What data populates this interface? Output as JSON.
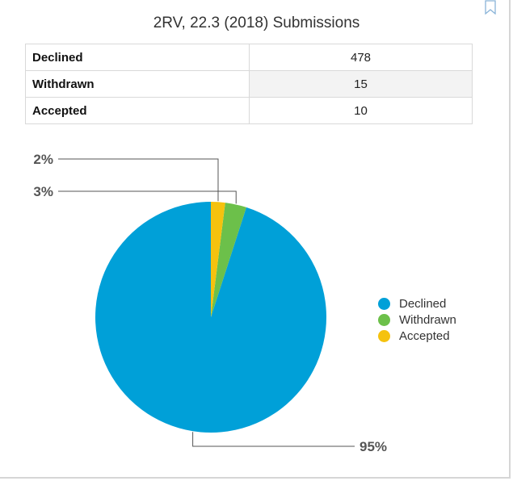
{
  "title": "2RV, 22.3 (2018) Submissions",
  "table": {
    "rows": [
      {
        "label": "Declined",
        "value": "478"
      },
      {
        "label": "Withdrawn",
        "value": "15"
      },
      {
        "label": "Accepted",
        "value": "10"
      }
    ]
  },
  "chart_data": {
    "type": "pie",
    "title": "2RV, 22.3 (2018) Submissions",
    "categories": [
      "Declined",
      "Withdrawn",
      "Accepted"
    ],
    "values": [
      478,
      15,
      10
    ],
    "percent_labels": [
      "95%",
      "3%",
      "2%"
    ],
    "colors": [
      "#00a0d8",
      "#6cc04a",
      "#f5c20e"
    ],
    "legend_placement": "right"
  },
  "icons": {
    "bookmark": "bookmark-icon"
  }
}
